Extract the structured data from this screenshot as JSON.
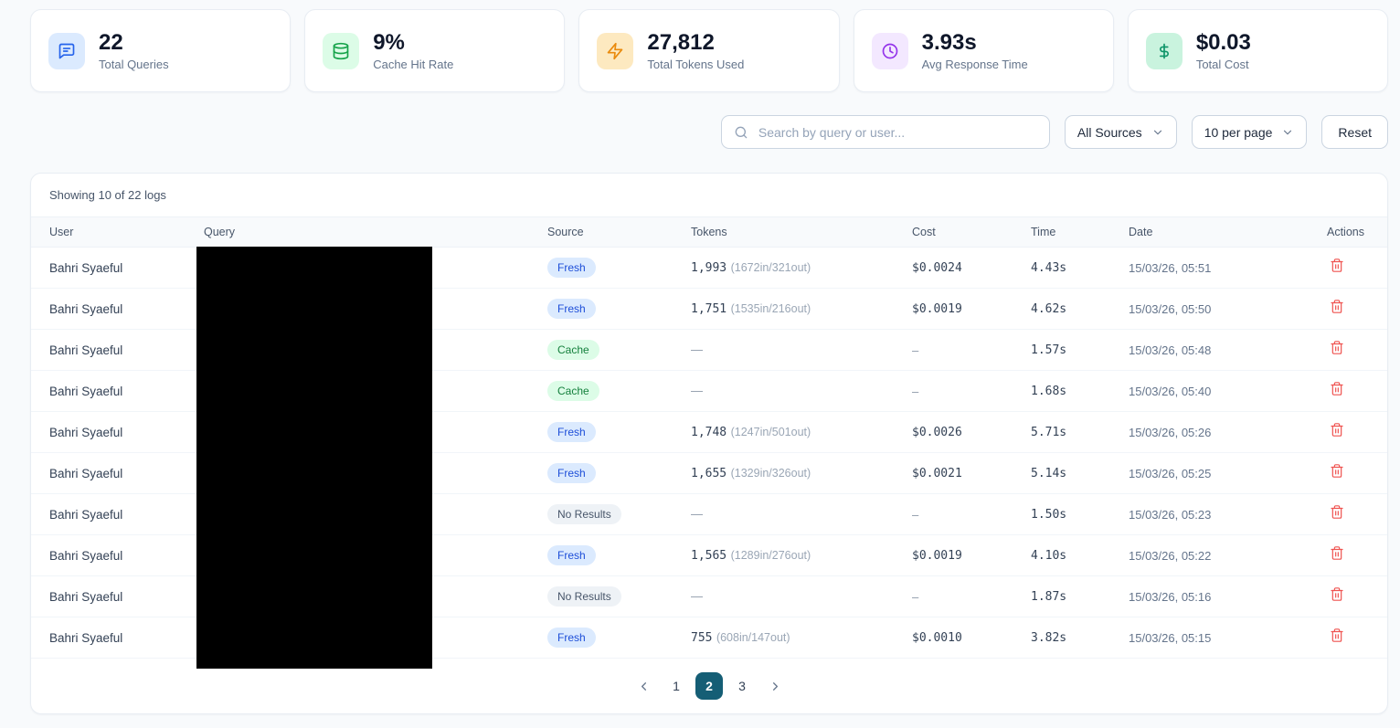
{
  "colors": {
    "page_background": "#f8fafc",
    "card_background": "#ffffff",
    "accent_blue": "#2563eb",
    "accent_green": "#16a34a",
    "accent_amber": "#ea8a0c",
    "accent_purple": "#9333ea",
    "accent_mint": "#0d9468",
    "badge_fresh_bg": "#dbeafe",
    "badge_fresh_text": "#1d4ed8",
    "badge_cache_bg": "#dcfce7",
    "badge_cache_text": "#15803d",
    "badge_no_results_bg": "#eef2f6",
    "badge_no_results_text": "#475569",
    "delete_icon": "#ef5350",
    "active_page_bg": "#155e75"
  },
  "stats": {
    "cards": [
      {
        "icon": "chat-icon",
        "value": "22",
        "label": "Total Queries"
      },
      {
        "icon": "database-icon",
        "value": "9%",
        "label": "Cache Hit Rate"
      },
      {
        "icon": "zap-icon",
        "value": "27,812",
        "label": "Total Tokens Used"
      },
      {
        "icon": "clock-icon",
        "value": "3.93s",
        "label": "Avg Response Time"
      },
      {
        "icon": "dollar-icon",
        "value": "$0.03",
        "label": "Total Cost"
      }
    ]
  },
  "filters": {
    "search_placeholder": "Search by query or user...",
    "source_filter_value": "All Sources",
    "page_size_value": "10 per page",
    "reset_label": "Reset"
  },
  "table": {
    "summary": "Showing 10 of 22 logs",
    "columns": [
      "User",
      "Query",
      "Source",
      "Tokens",
      "Cost",
      "Time",
      "Date",
      "Actions"
    ],
    "rows": [
      {
        "user": "Bahri Syaeful",
        "source": {
          "label": "Fresh",
          "variant": "fresh"
        },
        "tokens": "1,993",
        "tokens_detail": "(1672in/321out)",
        "cost": "$0.0024",
        "time": "4.43s",
        "date": "15/03/26, 05:51"
      },
      {
        "user": "Bahri Syaeful",
        "source": {
          "label": "Fresh",
          "variant": "fresh"
        },
        "tokens": "1,751",
        "tokens_detail": "(1535in/216out)",
        "cost": "$0.0019",
        "time": "4.62s",
        "date": "15/03/26, 05:50"
      },
      {
        "user": "Bahri Syaeful",
        "source": {
          "label": "Cache",
          "variant": "cache"
        },
        "tokens": "—",
        "tokens_detail": "",
        "cost": "–",
        "time": "1.57s",
        "date": "15/03/26, 05:48"
      },
      {
        "user": "Bahri Syaeful",
        "source": {
          "label": "Cache",
          "variant": "cache"
        },
        "tokens": "—",
        "tokens_detail": "",
        "cost": "–",
        "time": "1.68s",
        "date": "15/03/26, 05:40"
      },
      {
        "user": "Bahri Syaeful",
        "source": {
          "label": "Fresh",
          "variant": "fresh"
        },
        "tokens": "1,748",
        "tokens_detail": "(1247in/501out)",
        "cost": "$0.0026",
        "time": "5.71s",
        "date": "15/03/26, 05:26"
      },
      {
        "user": "Bahri Syaeful",
        "source": {
          "label": "Fresh",
          "variant": "fresh"
        },
        "tokens": "1,655",
        "tokens_detail": "(1329in/326out)",
        "cost": "$0.0021",
        "time": "5.14s",
        "date": "15/03/26, 05:25"
      },
      {
        "user": "Bahri Syaeful",
        "source": {
          "label": "No Results",
          "variant": "none"
        },
        "tokens": "—",
        "tokens_detail": "",
        "cost": "–",
        "time": "1.50s",
        "date": "15/03/26, 05:23"
      },
      {
        "user": "Bahri Syaeful",
        "source": {
          "label": "Fresh",
          "variant": "fresh"
        },
        "tokens": "1,565",
        "tokens_detail": "(1289in/276out)",
        "cost": "$0.0019",
        "time": "4.10s",
        "date": "15/03/26, 05:22"
      },
      {
        "user": "Bahri Syaeful",
        "source": {
          "label": "No Results",
          "variant": "none"
        },
        "tokens": "—",
        "tokens_detail": "",
        "cost": "–",
        "time": "1.87s",
        "date": "15/03/26, 05:16"
      },
      {
        "user": "Bahri Syaeful",
        "source": {
          "label": "Fresh",
          "variant": "fresh"
        },
        "tokens": "755",
        "tokens_detail": "(608in/147out)",
        "cost": "$0.0010",
        "time": "3.82s",
        "date": "15/03/26, 05:15"
      }
    ]
  },
  "pagination": {
    "pages": [
      "1",
      "2",
      "3"
    ],
    "active": "2"
  }
}
